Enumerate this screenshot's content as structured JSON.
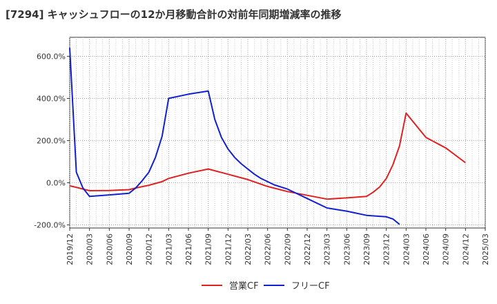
{
  "chart_data": {
    "type": "line",
    "title": "[7294]  キャッシュフローの12か月移動合計の対前年同期増減率の推移",
    "xlabel": "",
    "ylabel": "",
    "x_tick_labels": [
      "2019/12",
      "2020/03",
      "2020/06",
      "2020/09",
      "2020/12",
      "2021/03",
      "2021/06",
      "2021/09",
      "2021/12",
      "2022/03",
      "2022/06",
      "2022/09",
      "2022/12",
      "2023/03",
      "2023/06",
      "2023/09",
      "2023/12",
      "2024/03",
      "2024/06",
      "2024/09",
      "2024/12",
      "2025/03"
    ],
    "y_ticks": [
      {
        "value": -200,
        "label": "-200.0%"
      },
      {
        "value": 0,
        "label": "0.0%"
      },
      {
        "value": 200,
        "label": "200.0%"
      },
      {
        "value": 400,
        "label": "400.0%"
      },
      {
        "value": 600,
        "label": "600.0%"
      }
    ],
    "ylim": [
      -215,
      690
    ],
    "xlim_months": [
      0,
      63
    ],
    "grid": true,
    "legend_position": "bottom-center",
    "series": [
      {
        "name": "営業CF",
        "color": "#e02020",
        "points": [
          [
            0,
            -15
          ],
          [
            1,
            -22
          ],
          [
            2,
            -30
          ],
          [
            3,
            -38
          ],
          [
            6,
            -37
          ],
          [
            9,
            -33
          ],
          [
            10,
            -25
          ],
          [
            12,
            -12
          ],
          [
            14,
            5
          ],
          [
            15,
            20
          ],
          [
            18,
            45
          ],
          [
            21,
            65
          ],
          [
            24,
            40
          ],
          [
            27,
            15
          ],
          [
            30,
            -18
          ],
          [
            33,
            -42
          ],
          [
            36,
            -60
          ],
          [
            39,
            -78
          ],
          [
            42,
            -72
          ],
          [
            45,
            -65
          ],
          [
            46,
            -45
          ],
          [
            47,
            -20
          ],
          [
            48,
            20
          ],
          [
            49,
            85
          ],
          [
            50,
            175
          ],
          [
            51,
            330
          ],
          [
            54,
            215
          ],
          [
            57,
            165
          ],
          [
            60,
            95
          ]
        ]
      },
      {
        "name": "フリーCF",
        "color": "#1020d0",
        "points": [
          [
            0,
            640
          ],
          [
            1,
            50
          ],
          [
            2,
            -25
          ],
          [
            3,
            -65
          ],
          [
            6,
            -58
          ],
          [
            9,
            -50
          ],
          [
            10,
            -25
          ],
          [
            11,
            10
          ],
          [
            12,
            50
          ],
          [
            13,
            120
          ],
          [
            14,
            220
          ],
          [
            15,
            400
          ],
          [
            18,
            420
          ],
          [
            21,
            435
          ],
          [
            22,
            300
          ],
          [
            23,
            215
          ],
          [
            24,
            160
          ],
          [
            25,
            120
          ],
          [
            26,
            90
          ],
          [
            27,
            65
          ],
          [
            28,
            40
          ],
          [
            29,
            20
          ],
          [
            30,
            5
          ],
          [
            31,
            -10
          ],
          [
            33,
            -30
          ],
          [
            36,
            -75
          ],
          [
            39,
            -120
          ],
          [
            42,
            -135
          ],
          [
            45,
            -155
          ],
          [
            48,
            -162
          ],
          [
            49,
            -172
          ],
          [
            50,
            -198
          ]
        ]
      }
    ]
  }
}
